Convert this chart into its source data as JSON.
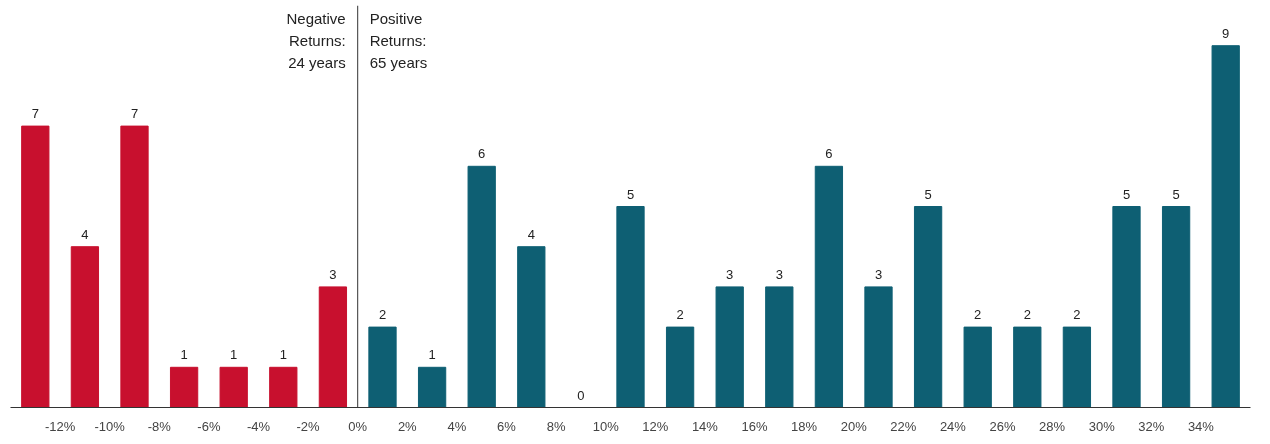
{
  "chart_data": {
    "type": "bar",
    "x": [
      -13,
      -11,
      -9,
      -7,
      -5,
      -3,
      -1,
      1,
      3,
      5,
      7,
      9,
      11,
      13,
      15,
      17,
      19,
      21,
      23,
      25,
      27,
      29,
      31,
      33,
      35
    ],
    "values": [
      7,
      4,
      7,
      1,
      1,
      1,
      3,
      2,
      1,
      6,
      4,
      0,
      5,
      2,
      3,
      3,
      6,
      3,
      5,
      2,
      2,
      2,
      5,
      5,
      9
    ],
    "colors": [
      "#c8102e",
      "#c8102e",
      "#c8102e",
      "#c8102e",
      "#c8102e",
      "#c8102e",
      "#c8102e",
      "#0e5f73",
      "#0e5f73",
      "#0e5f73",
      "#0e5f73",
      "#0e5f73",
      "#0e5f73",
      "#0e5f73",
      "#0e5f73",
      "#0e5f73",
      "#0e5f73",
      "#0e5f73",
      "#0e5f73",
      "#0e5f73",
      "#0e5f73",
      "#0e5f73",
      "#0e5f73",
      "#0e5f73",
      "#0e5f73"
    ],
    "xlim": [
      -14,
      36
    ],
    "xticks": [
      {
        "value": -12,
        "label": "-12%"
      },
      {
        "value": -10,
        "label": "-10%"
      },
      {
        "value": -8,
        "label": "-8%"
      },
      {
        "value": -6,
        "label": "-6%"
      },
      {
        "value": -4,
        "label": "-4%"
      },
      {
        "value": -2,
        "label": "-2%"
      },
      {
        "value": 0,
        "label": "0%"
      },
      {
        "value": 2,
        "label": "2%"
      },
      {
        "value": 4,
        "label": "4%"
      },
      {
        "value": 6,
        "label": "6%"
      },
      {
        "value": 8,
        "label": "8%"
      },
      {
        "value": 10,
        "label": "10%"
      },
      {
        "value": 12,
        "label": "12%"
      },
      {
        "value": 14,
        "label": "14%"
      },
      {
        "value": 16,
        "label": "16%"
      },
      {
        "value": 18,
        "label": "18%"
      },
      {
        "value": 20,
        "label": "20%"
      },
      {
        "value": 22,
        "label": "22%"
      },
      {
        "value": 24,
        "label": "24%"
      },
      {
        "value": 26,
        "label": "26%"
      },
      {
        "value": 28,
        "label": "28%"
      },
      {
        "value": 30,
        "label": "30%"
      },
      {
        "value": 32,
        "label": "32%"
      },
      {
        "value": 34,
        "label": "34%"
      }
    ],
    "ylim": [
      0,
      10
    ],
    "tick_labels": "x",
    "grid": false,
    "data_labels": true,
    "ref_lines": [
      {
        "axis": "x",
        "value": 0,
        "color": "#333333"
      }
    ],
    "annotations": [
      "Negative\nReturns:\n24 years",
      "Positive\nReturns:\n65 years"
    ]
  }
}
